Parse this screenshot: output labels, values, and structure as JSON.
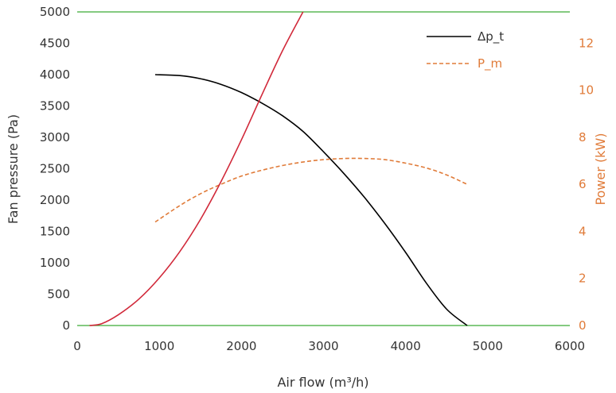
{
  "chart_data": {
    "type": "line",
    "title": "",
    "xlabel": "Air flow (m³/h)",
    "ylabel": "Fan pressure (Pa)",
    "y2label": "Power (kW)",
    "xlim": [
      0,
      6000
    ],
    "ylim": [
      0,
      5000
    ],
    "y2lim": [
      0,
      13.33
    ],
    "x_ticks": [
      0,
      1000,
      2000,
      3000,
      4000,
      5000,
      6000
    ],
    "y_ticks": [
      0,
      500,
      1000,
      1500,
      2000,
      2500,
      3000,
      3500,
      4000,
      4500,
      5000
    ],
    "y2_ticks": [
      0,
      2,
      4,
      6,
      8,
      10,
      12
    ],
    "grid": false,
    "legend": "top-right",
    "reference_lines": [
      {
        "axis": "y",
        "value": 5000,
        "color": "#3aaa35"
      },
      {
        "axis": "y",
        "value": 0,
        "color": "#3aaa35"
      }
    ],
    "series": [
      {
        "name": "Δp_t",
        "axis": "left",
        "style": "solid",
        "color": "#000000",
        "x": [
          950,
          1250,
          1500,
          1750,
          2000,
          2250,
          2500,
          2750,
          3000,
          3250,
          3500,
          3750,
          4000,
          4250,
          4500,
          4750
        ],
        "y": [
          4000,
          3985,
          3935,
          3845,
          3715,
          3545,
          3345,
          3095,
          2770,
          2420,
          2040,
          1620,
          1165,
          680,
          260,
          0
        ]
      },
      {
        "name": "P_m",
        "axis": "right",
        "style": "dashed",
        "color": "#e07b39",
        "x": [
          950,
          1250,
          1500,
          1750,
          2000,
          2250,
          2500,
          2750,
          3000,
          3250,
          3500,
          3750,
          4000,
          4250,
          4500,
          4750
        ],
        "y": [
          4.4,
          5.1,
          5.6,
          6.0,
          6.35,
          6.6,
          6.8,
          6.95,
          7.05,
          7.1,
          7.1,
          7.05,
          6.9,
          6.7,
          6.4,
          6.0
        ]
      },
      {
        "axis": "left",
        "style": "solid",
        "color": "#d1293a",
        "x": [
          150,
          300,
          500,
          750,
          1000,
          1250,
          1500,
          1750,
          2000,
          2250,
          2500,
          2750
        ],
        "y": [
          0,
          30,
          170,
          420,
          760,
          1180,
          1690,
          2290,
          2960,
          3680,
          4380,
          5000
        ]
      }
    ]
  }
}
